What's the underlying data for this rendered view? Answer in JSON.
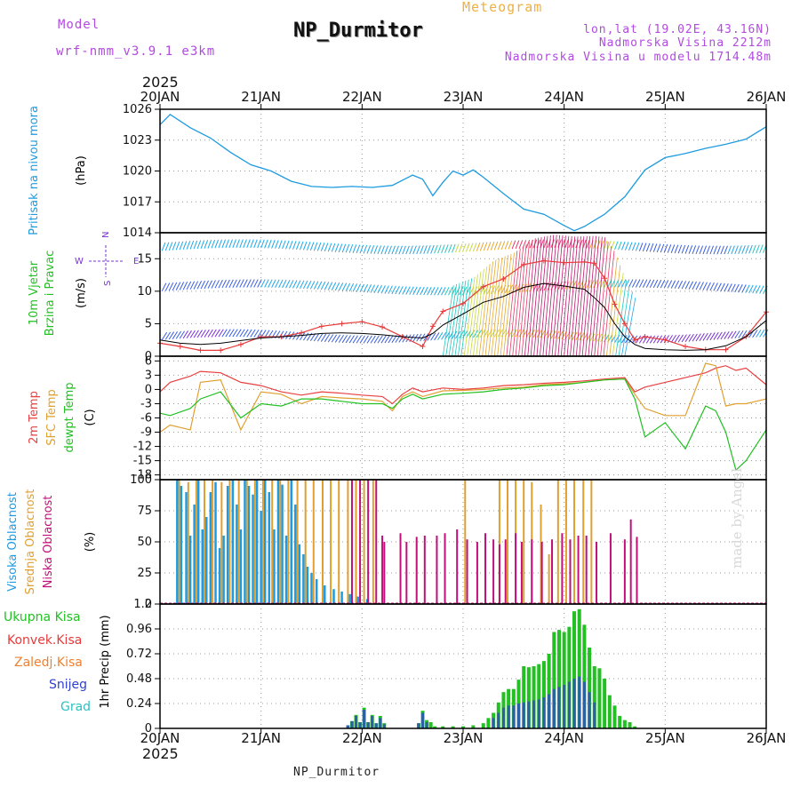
{
  "header": {
    "title": "NP_Durmitor",
    "subtitle": "Meteogram",
    "model_label": "Model",
    "model_name": "wrf-nmm_v3.9.1 e3km",
    "coords": "lon,lat (19.02E, 43.16N)",
    "elevation": "Nadmorska Visina 2212m",
    "model_elevation": "Nadmorska Visina u modelu 1714.48m",
    "year": "2025",
    "footer": "NP_Durmitor",
    "watermark": "made by Angel"
  },
  "colors": {
    "pressure": "#1e9be0",
    "wind_blue": "#1f9ce8",
    "wind_purple": "#7a2fd6",
    "wind_red": "#e83a3a",
    "temp2m": "#e84040",
    "sfc": "#e0a030",
    "dewpt": "#22c022",
    "cloud_high": "#1e9be0",
    "cloud_mid": "#e0a030",
    "cloud_low": "#c0107a",
    "precip_total": "#22c022",
    "precip_conv": "#e83a3a",
    "precip_ice": "#f08030",
    "precip_snow": "#3040d0",
    "precip_grad": "#30c0c0"
  },
  "chart_data": [
    {
      "type": "line",
      "id": "pressure",
      "title": "Pritisak na nivou mora",
      "ylabel": "(hPa)",
      "ylim": [
        1014,
        1026
      ],
      "yticks": [
        "1014",
        "1017",
        "1020",
        "1023",
        "1026"
      ],
      "x_unit": "days since 20JAN 00UTC",
      "x": [
        0,
        0.1,
        0.3,
        0.5,
        0.7,
        0.9,
        1.1,
        1.3,
        1.5,
        1.7,
        1.9,
        2.1,
        2.3,
        2.5,
        2.6,
        2.7,
        2.8,
        2.9,
        3.0,
        3.1,
        3.2,
        3.4,
        3.6,
        3.8,
        4.0,
        4.1,
        4.2,
        4.4,
        4.6,
        4.8,
        5.0,
        5.2,
        5.4,
        5.6,
        5.8,
        6.0
      ],
      "values": [
        1024.5,
        1025.5,
        1024.2,
        1023.2,
        1021.8,
        1020.6,
        1020.0,
        1019.0,
        1018.5,
        1018.4,
        1018.5,
        1018.4,
        1018.6,
        1019.6,
        1019.2,
        1017.6,
        1018.9,
        1020.0,
        1019.6,
        1020.1,
        1019.4,
        1017.8,
        1016.3,
        1015.8,
        1014.7,
        1014.2,
        1014.6,
        1015.8,
        1017.5,
        1020.1,
        1021.3,
        1021.7,
        1022.2,
        1022.6,
        1023.1,
        1024.3
      ]
    },
    {
      "type": "line",
      "id": "wind",
      "title": "10m Vjetar Brzina i Pravac",
      "ylabel": "(m/s)",
      "ylim": [
        0,
        19
      ],
      "yticks": [
        "0",
        "5",
        "10",
        "15"
      ],
      "compass": [
        "N",
        "E",
        "S",
        "W"
      ],
      "x": [
        0,
        0.2,
        0.4,
        0.6,
        0.8,
        1.0,
        1.2,
        1.4,
        1.6,
        1.8,
        2.0,
        2.2,
        2.4,
        2.6,
        2.7,
        2.8,
        3.0,
        3.2,
        3.4,
        3.6,
        3.8,
        4.0,
        4.2,
        4.3,
        4.4,
        4.5,
        4.6,
        4.7,
        4.8,
        5.0,
        5.2,
        5.4,
        5.6,
        5.8,
        6.0
      ],
      "series": [
        {
          "name": "speed",
          "values": [
            2.0,
            1.5,
            0.9,
            0.9,
            1.8,
            3.0,
            3.0,
            3.6,
            4.6,
            5.0,
            5.3,
            4.5,
            3.0,
            1.5,
            4.6,
            6.9,
            8.1,
            10.7,
            11.9,
            14.1,
            14.7,
            14.4,
            14.5,
            14.3,
            12.0,
            8.0,
            5.0,
            2.5,
            3.0,
            2.5,
            1.5,
            1.0,
            1.0,
            3.0,
            6.8
          ]
        },
        {
          "name": "mean",
          "values": [
            2.5,
            2.0,
            1.8,
            2.0,
            2.4,
            2.8,
            3.0,
            3.2,
            3.5,
            3.6,
            3.5,
            3.3,
            3.0,
            2.8,
            3.5,
            4.8,
            6.5,
            8.3,
            9.2,
            10.6,
            11.2,
            10.8,
            10.3,
            9.0,
            7.5,
            5.0,
            3.0,
            1.8,
            1.2,
            1.0,
            0.9,
            1.0,
            1.6,
            3.0,
            5.5
          ]
        }
      ]
    },
    {
      "type": "line",
      "id": "temperature",
      "title": "2m Temp / SFC Temp / dewpt Temp",
      "ylabel": "(C)",
      "ylim": [
        -19,
        7
      ],
      "yticks": [
        "-18",
        "-15",
        "-12",
        "-9",
        "-6",
        "-3",
        "0",
        "3",
        "6"
      ],
      "x": [
        0,
        0.1,
        0.3,
        0.4,
        0.6,
        0.8,
        1.0,
        1.2,
        1.4,
        1.6,
        1.8,
        2.0,
        2.2,
        2.3,
        2.4,
        2.5,
        2.6,
        2.8,
        3.0,
        3.2,
        3.4,
        3.6,
        3.8,
        4.0,
        4.2,
        4.4,
        4.6,
        4.7,
        4.8,
        5.0,
        5.2,
        5.4,
        5.5,
        5.6,
        5.7,
        5.8,
        6.0
      ],
      "series": [
        {
          "name": "2m Temp",
          "values": [
            -0.5,
            1.5,
            2.8,
            3.8,
            3.5,
            1.5,
            0.8,
            -0.5,
            -1.2,
            -0.5,
            -0.8,
            -1.2,
            -1.5,
            -3.0,
            -1.0,
            0.3,
            -0.5,
            0.3,
            0.0,
            0.3,
            0.8,
            1.0,
            1.3,
            1.5,
            1.8,
            2.2,
            2.5,
            -0.5,
            0.5,
            1.5,
            2.5,
            3.5,
            4.5,
            5.0,
            4.0,
            4.5,
            1.0
          ]
        },
        {
          "name": "SFC Temp",
          "values": [
            -9.0,
            -7.5,
            -8.5,
            1.5,
            2.0,
            -8.5,
            -0.5,
            -1.0,
            -3.0,
            -1.5,
            -1.8,
            -2.0,
            -2.5,
            -4.5,
            -1.5,
            -0.5,
            -1.5,
            -0.3,
            -0.2,
            0.0,
            0.3,
            0.5,
            1.0,
            1.2,
            1.5,
            2.0,
            2.2,
            -1.0,
            -4.0,
            -5.5,
            -5.5,
            5.5,
            5.0,
            -3.5,
            -3.0,
            -3.0,
            -2.0
          ]
        },
        {
          "name": "dewpt Temp",
          "values": [
            -5.0,
            -5.5,
            -4.0,
            -2.0,
            -0.5,
            -6.0,
            -3.0,
            -3.5,
            -2.0,
            -2.0,
            -2.5,
            -3.0,
            -3.0,
            -4.0,
            -2.0,
            -1.0,
            -2.0,
            -1.0,
            -0.8,
            -0.5,
            0.0,
            0.3,
            0.8,
            1.0,
            1.5,
            2.0,
            2.2,
            -2.0,
            -10.0,
            -7.0,
            -12.5,
            -3.5,
            -4.5,
            -9.0,
            -17.0,
            -15.0,
            -8.5
          ]
        }
      ]
    },
    {
      "type": "bar",
      "id": "clouds",
      "title": "Visoka / Srednja / Niska Oblacnost",
      "ylabel": "(%)",
      "ylim": [
        0,
        100
      ],
      "yticks": [
        "0",
        "25",
        "50",
        "75",
        "100"
      ],
      "series": [
        {
          "name": "Visoka Oblacnost",
          "x": [
            0.17,
            0.21,
            0.26,
            0.3,
            0.34,
            0.38,
            0.42,
            0.46,
            0.5,
            0.55,
            0.59,
            0.63,
            0.67,
            0.72,
            0.76,
            0.8,
            0.84,
            0.88,
            0.92,
            0.96,
            1.0,
            1.04,
            1.08,
            1.13,
            1.17,
            1.21,
            1.25,
            1.3,
            1.34,
            1.38,
            1.42,
            1.46,
            1.5,
            1.55,
            1.63,
            1.72,
            1.8,
            1.88,
            1.96,
            2.05
          ],
          "values": [
            100,
            95,
            90,
            55,
            80,
            100,
            60,
            70,
            90,
            98,
            45,
            55,
            95,
            100,
            80,
            60,
            100,
            95,
            88,
            100,
            75,
            100,
            90,
            60,
            100,
            96,
            55,
            100,
            80,
            48,
            40,
            30,
            25,
            20,
            15,
            12,
            10,
            8,
            6,
            4
          ]
        },
        {
          "name": "Srednja Oblacnost",
          "x": [
            0.19,
            0.28,
            0.36,
            0.44,
            0.52,
            0.61,
            0.69,
            0.78,
            0.86,
            0.94,
            1.02,
            1.11,
            1.19,
            1.27,
            1.36,
            1.44,
            1.52,
            1.61,
            1.69,
            1.77,
            1.86,
            1.94,
            2.02,
            2.11,
            3.02,
            3.36,
            3.44,
            3.52,
            3.6,
            3.68,
            3.77,
            3.85,
            3.94,
            4.02,
            4.1,
            4.19,
            4.27
          ],
          "values": [
            100,
            98,
            100,
            100,
            100,
            98,
            100,
            100,
            100,
            100,
            100,
            100,
            100,
            100,
            100,
            100,
            100,
            100,
            100,
            100,
            100,
            100,
            100,
            100,
            100,
            100,
            100,
            100,
            100,
            98,
            80,
            40,
            100,
            100,
            100,
            100,
            100
          ]
        },
        {
          "name": "Niska Oblacnost",
          "x": [
            1.9,
            1.98,
            2.06,
            2.14,
            2.2,
            2.22,
            2.38,
            2.44,
            2.54,
            2.62,
            2.74,
            2.82,
            2.94,
            3.04,
            3.14,
            3.22,
            3.3,
            3.36,
            3.42,
            3.52,
            3.58,
            3.68,
            3.78,
            3.88,
            3.98,
            4.06,
            4.14,
            4.22,
            4.32,
            4.46,
            4.6,
            4.66,
            4.72
          ],
          "values": [
            100,
            100,
            100,
            100,
            55,
            50,
            57,
            50,
            54,
            55,
            55,
            57,
            60,
            52,
            50,
            57,
            52,
            48,
            52,
            57,
            50,
            52,
            50,
            52,
            57,
            52,
            55,
            55,
            50,
            57,
            52,
            68,
            54
          ]
        }
      ]
    },
    {
      "type": "bar",
      "id": "precip",
      "title": "1hr Precip",
      "ylabel": "(mm)",
      "ylim": [
        0,
        1.2
      ],
      "yticks": [
        "0",
        "0.24",
        "0.48",
        "0.72",
        "0.96",
        "1.2"
      ],
      "legend": [
        "Ukupna Kisa",
        "Konvek.Kisa",
        "Zaledj.Kisa",
        "Snijeg",
        "Grad"
      ],
      "series": [
        {
          "name": "Ukupna Kisa",
          "x": [
            1.86,
            1.9,
            1.94,
            1.98,
            2.02,
            2.06,
            2.1,
            2.14,
            2.18,
            2.22,
            2.56,
            2.6,
            2.64,
            2.68,
            2.72,
            2.8,
            2.9,
            3.0,
            3.1,
            3.2,
            3.25,
            3.3,
            3.35,
            3.4,
            3.45,
            3.5,
            3.55,
            3.6,
            3.65,
            3.7,
            3.75,
            3.8,
            3.85,
            3.9,
            3.95,
            4.0,
            4.05,
            4.1,
            4.15,
            4.2,
            4.25,
            4.3,
            4.35,
            4.4,
            4.45,
            4.5,
            4.55,
            4.6,
            4.65,
            4.7
          ],
          "values": [
            0.03,
            0.07,
            0.13,
            0.06,
            0.2,
            0.06,
            0.13,
            0.05,
            0.12,
            0.05,
            0.05,
            0.17,
            0.08,
            0.06,
            0.02,
            0.02,
            0.02,
            0.02,
            0.03,
            0.05,
            0.1,
            0.15,
            0.25,
            0.35,
            0.38,
            0.38,
            0.47,
            0.6,
            0.59,
            0.6,
            0.62,
            0.65,
            0.72,
            0.93,
            0.95,
            0.93,
            0.98,
            1.13,
            1.15,
            1.0,
            0.78,
            0.6,
            0.58,
            0.48,
            0.32,
            0.22,
            0.12,
            0.08,
            0.06,
            0.02
          ]
        },
        {
          "name": "Snijeg",
          "x": [
            1.86,
            1.9,
            1.94,
            1.98,
            2.02,
            2.06,
            2.1,
            2.14,
            2.18,
            2.22,
            2.56,
            2.6,
            2.64,
            3.3,
            3.35,
            3.4,
            3.45,
            3.5,
            3.55,
            3.6,
            3.65,
            3.7,
            3.75,
            3.8,
            3.85,
            3.9,
            3.95,
            4.0,
            4.05,
            4.1,
            4.15,
            4.2,
            4.25,
            4.3
          ],
          "values": [
            0.03,
            0.07,
            0.12,
            0.06,
            0.18,
            0.06,
            0.12,
            0.05,
            0.1,
            0.04,
            0.05,
            0.15,
            0.06,
            0.1,
            0.15,
            0.2,
            0.22,
            0.22,
            0.24,
            0.25,
            0.26,
            0.27,
            0.28,
            0.3,
            0.33,
            0.38,
            0.4,
            0.42,
            0.45,
            0.48,
            0.5,
            0.45,
            0.35,
            0.25
          ]
        }
      ]
    }
  ],
  "panels": {
    "pressure": {
      "label_lines": [
        "Pritisak na nivou mora"
      ]
    },
    "wind": {
      "label_lines": [
        "10m Vjetar",
        "Brzina i Pravac"
      ]
    },
    "temperature": {
      "label_lines": [
        "2m Temp",
        "SFC Temp",
        "dewpt Temp"
      ]
    },
    "clouds": {
      "label_lines": [
        "Visoka Oblacnost",
        "Srednja Oblacnost",
        "Niska Oblacnost"
      ]
    },
    "precip": {
      "label_lines": [
        "Ukupna Kisa",
        "Konvek.Kisa",
        "Zaledj.Kisa",
        "Snijeg",
        "Grad"
      ]
    }
  },
  "x_axis": {
    "labels": [
      "20JAN",
      "21JAN",
      "22JAN",
      "23JAN",
      "24JAN",
      "25JAN",
      "26JAN"
    ]
  }
}
